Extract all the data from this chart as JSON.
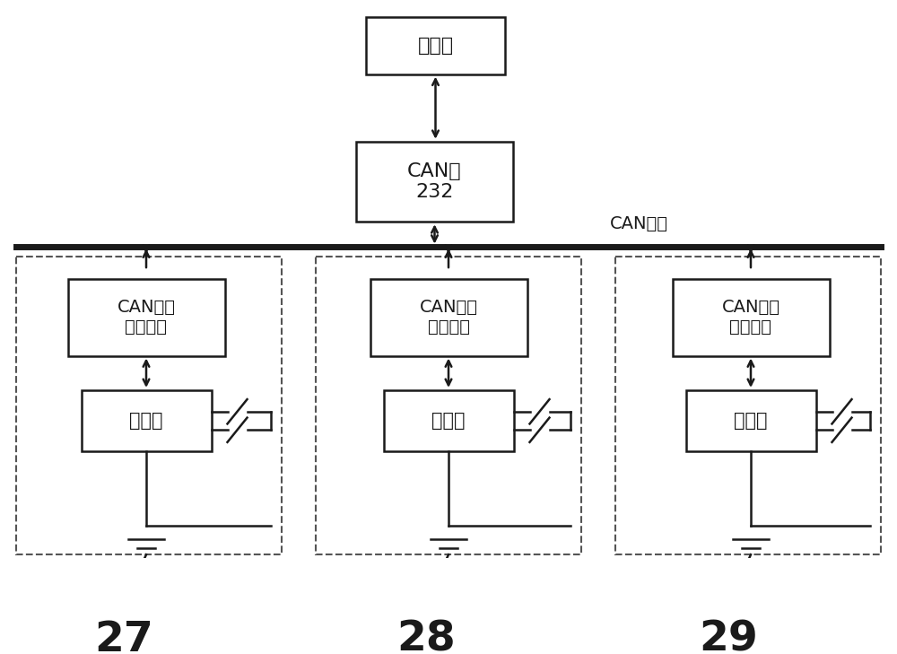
{
  "bg_color": "#ffffff",
  "line_color": "#1a1a1a",
  "dashed_color": "#555555",
  "fig_width": 10.0,
  "fig_height": 7.29,
  "top_box_label": "工控机",
  "mid_box_label": "CAN转\n232",
  "can_bus_label": "CAN总线",
  "can_chip_label": "CAN总线\n收发芯片",
  "mcu_label": "单片机",
  "modules": [
    27,
    28,
    29
  ]
}
